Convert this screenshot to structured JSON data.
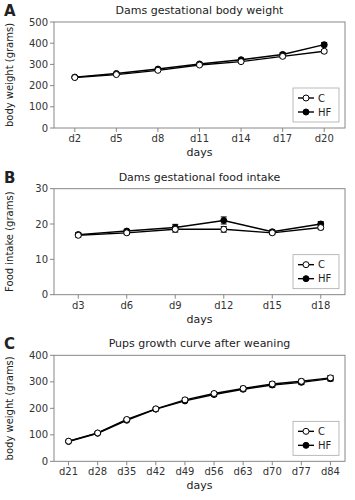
{
  "chart_data": [
    {
      "type": "line",
      "title": "Dams gestational body weight",
      "xlabel": "days",
      "ylabel": "body weight (grams)",
      "annotations": [
        "A"
      ],
      "x": [
        2,
        5,
        8,
        11,
        14,
        17,
        20
      ],
      "xlim": [
        0.5,
        21.5
      ],
      "xticks": [
        {
          "value": 2,
          "label": "d2"
        },
        {
          "value": 5,
          "label": "d5"
        },
        {
          "value": 8,
          "label": "d8"
        },
        {
          "value": 11,
          "label": "d11"
        },
        {
          "value": 14,
          "label": "d14"
        },
        {
          "value": 17,
          "label": "d17"
        },
        {
          "value": 20,
          "label": "d20"
        }
      ],
      "ylim": [
        0,
        500
      ],
      "yticks": [
        0,
        100,
        200,
        300,
        400,
        500
      ],
      "grid": false,
      "legend": "lower right",
      "series": [
        {
          "name": "C",
          "color": "#000000",
          "marker": "open-circle",
          "values": [
            238,
            252,
            272,
            297,
            313,
            338,
            362
          ],
          "errors": [
            4,
            4,
            5,
            5,
            6,
            7,
            8
          ]
        },
        {
          "name": "HF",
          "color": "#000000",
          "marker": "filled-circle",
          "values": [
            240,
            257,
            278,
            302,
            322,
            347,
            393
          ],
          "errors": [
            5,
            5,
            6,
            6,
            7,
            8,
            10
          ]
        }
      ]
    },
    {
      "type": "line",
      "title": "Dams gestational food intake",
      "xlabel": "days",
      "ylabel": "Food intake (grams)",
      "annotations": [
        "B"
      ],
      "x": [
        3,
        6,
        9,
        12,
        15,
        18
      ],
      "xlim": [
        1.5,
        19.5
      ],
      "xticks": [
        {
          "value": 3,
          "label": "d3"
        },
        {
          "value": 6,
          "label": "d6"
        },
        {
          "value": 9,
          "label": "d9"
        },
        {
          "value": 12,
          "label": "d12"
        },
        {
          "value": 15,
          "label": "d15"
        },
        {
          "value": 18,
          "label": "d18"
        }
      ],
      "ylim": [
        0,
        30
      ],
      "yticks": [
        0,
        10,
        20,
        30
      ],
      "grid": false,
      "legend": "lower right",
      "series": [
        {
          "name": "C",
          "color": "#000000",
          "marker": "open-circle",
          "values": [
            16.8,
            17.5,
            18.5,
            18.5,
            17.5,
            19.0
          ],
          "errors": [
            0.5,
            0.5,
            0.8,
            0.8,
            0.5,
            0.6
          ]
        },
        {
          "name": "HF",
          "color": "#000000",
          "marker": "filled-circle",
          "values": [
            17.0,
            18.0,
            19.0,
            21.0,
            17.8,
            20.0
          ],
          "errors": [
            0.6,
            0.5,
            0.9,
            1.0,
            0.5,
            0.7
          ]
        }
      ]
    },
    {
      "type": "line",
      "title": "Pups growth curve after weaning",
      "xlabel": "days",
      "ylabel": "body weight (grams)",
      "annotations": [
        "C"
      ],
      "x": [
        21,
        28,
        35,
        42,
        49,
        56,
        63,
        70,
        77,
        84
      ],
      "xlim": [
        17.5,
        87.5
      ],
      "xticks": [
        {
          "value": 21,
          "label": "d21"
        },
        {
          "value": 28,
          "label": "d28"
        },
        {
          "value": 35,
          "label": "d35"
        },
        {
          "value": 42,
          "label": "d42"
        },
        {
          "value": 49,
          "label": "d49"
        },
        {
          "value": 56,
          "label": "d56"
        },
        {
          "value": 63,
          "label": "d63"
        },
        {
          "value": 70,
          "label": "d70"
        },
        {
          "value": 77,
          "label": "d77"
        },
        {
          "value": 84,
          "label": "d84"
        }
      ],
      "ylim": [
        0,
        400
      ],
      "yticks": [
        0,
        100,
        200,
        300,
        400
      ],
      "grid": false,
      "legend": "lower right",
      "series": [
        {
          "name": "C",
          "color": "#000000",
          "marker": "open-circle",
          "values": [
            76,
            107,
            158,
            198,
            232,
            256,
            275,
            292,
            302,
            315
          ],
          "errors": [
            3,
            4,
            5,
            6,
            7,
            7,
            8,
            8,
            8,
            9
          ]
        },
        {
          "name": "HF",
          "color": "#000000",
          "marker": "filled-circle",
          "values": [
            75,
            106,
            155,
            197,
            228,
            252,
            272,
            288,
            298,
            312
          ],
          "errors": [
            3,
            4,
            5,
            6,
            6,
            7,
            7,
            8,
            8,
            9
          ]
        }
      ]
    }
  ]
}
